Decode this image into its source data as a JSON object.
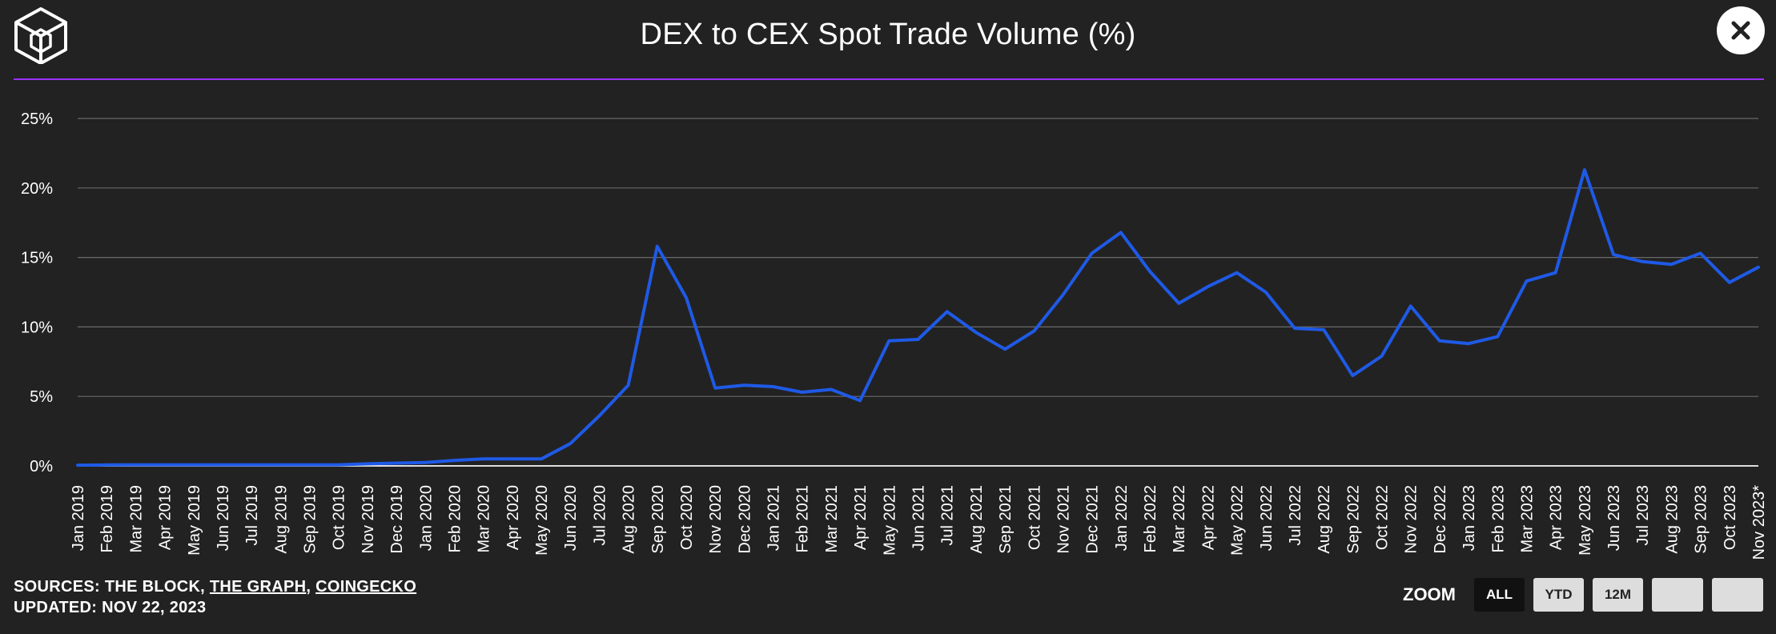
{
  "header": {
    "title": "DEX to CEX Spot Trade Volume (%)",
    "logo_icon": "cube-logo-icon",
    "close_icon": "close-icon",
    "accent_color": "#9b30ff"
  },
  "chart_data": {
    "type": "line",
    "title": "DEX to CEX Spot Trade Volume (%)",
    "xlabel": "",
    "ylabel": "",
    "ylim": [
      0,
      25
    ],
    "y_ticks": [
      "0%",
      "5%",
      "10%",
      "15%",
      "20%",
      "25%"
    ],
    "grid": true,
    "line_color": "#1f5ae6",
    "categories": [
      "Jan 2019",
      "Feb 2019",
      "Mar 2019",
      "Apr 2019",
      "May 2019",
      "Jun 2019",
      "Jul 2019",
      "Aug 2019",
      "Sep 2019",
      "Oct 2019",
      "Nov 2019",
      "Dec 2019",
      "Jan 2020",
      "Feb 2020",
      "Mar 2020",
      "Apr 2020",
      "May 2020",
      "Jun 2020",
      "Jul 2020",
      "Aug 2020",
      "Sep 2020",
      "Oct 2020",
      "Nov 2020",
      "Dec 2020",
      "Jan 2021",
      "Feb 2021",
      "Mar 2021",
      "Apr 2021",
      "May 2021",
      "Jun 2021",
      "Jul 2021",
      "Aug 2021",
      "Sep 2021",
      "Oct 2021",
      "Nov 2021",
      "Dec 2021",
      "Jan 2022",
      "Feb 2022",
      "Mar 2022",
      "Apr 2022",
      "May 2022",
      "Jun 2022",
      "Jul 2022",
      "Aug 2022",
      "Sep 2022",
      "Oct 2022",
      "Nov 2022",
      "Dec 2022",
      "Jan 2023",
      "Feb 2023",
      "Mar 2023",
      "Apr 2023",
      "May 2023",
      "Jun 2023",
      "Jul 2023",
      "Aug 2023",
      "Sep 2023",
      "Oct 2023",
      "Nov 2023*"
    ],
    "series": [
      {
        "values": [
          0.05,
          0.07,
          0.08,
          0.08,
          0.08,
          0.08,
          0.08,
          0.08,
          0.08,
          0.08,
          0.15,
          0.2,
          0.25,
          0.4,
          0.5,
          0.5,
          0.5,
          1.6,
          3.6,
          5.8,
          15.8,
          12.1,
          5.6,
          5.8,
          5.7,
          5.3,
          5.5,
          4.7,
          9.0,
          9.1,
          11.1,
          9.6,
          8.4,
          9.7,
          12.3,
          15.3,
          16.8,
          14.0,
          11.7,
          12.9,
          13.9,
          12.5,
          9.9,
          9.8,
          6.5,
          7.9,
          11.5,
          9.0,
          8.8,
          9.3,
          13.3,
          13.9,
          21.3,
          15.2,
          14.7,
          14.5,
          15.3,
          13.2,
          14.3
        ]
      }
    ]
  },
  "footer": {
    "sources_prefix": "SOURCES: THE BLOCK, ",
    "source_link_1": "THE GRAPH",
    "separator": ", ",
    "source_link_2": "COINGECKO",
    "updated": "UPDATED: NOV 22, 2023"
  },
  "zoom": {
    "label": "ZOOM",
    "buttons": [
      "ALL",
      "YTD",
      "12M",
      "",
      ""
    ],
    "active": "ALL"
  }
}
